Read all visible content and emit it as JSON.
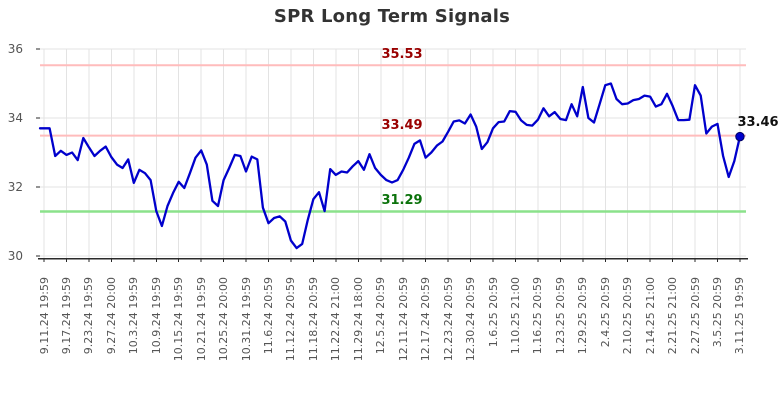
{
  "title": "SPR Long Term Signals",
  "colors": {
    "line": "#0000cc",
    "grid": "#e3e3e3",
    "axis": "#2a2a2a",
    "tick_text": "#555555",
    "title_text": "#333333",
    "last_label_text": "#111111"
  },
  "chart_data": {
    "type": "line",
    "title": "SPR Long Term Signals",
    "xlabel": "",
    "ylabel": "",
    "grid": true,
    "legend_position": "none",
    "y_ticks": [
      36,
      34,
      32,
      30
    ],
    "ylim": [
      29.9,
      36.1
    ],
    "x_tick_labels": [
      "9.11.24 19:59",
      "9.17.24 19:59",
      "9.23.24 19:59",
      "9.27.24 20:00",
      "10.3.24 19:59",
      "10.9.24 19:59",
      "10.15.24 19:59",
      "10.21.24 19:59",
      "10.25.24 20:00",
      "10.31.24 19:59",
      "11.6.24 20:59",
      "11.12.24 20:59",
      "11.18.24 20:59",
      "11.22.24 21:00",
      "11.29.24 18:00",
      "12.5.24 20:59",
      "12.11.24 20:59",
      "12.17.24 20:59",
      "12.23.24 20:59",
      "12.30.24 20:59",
      "1.6.25 20:59",
      "1.10.25 21:00",
      "1.16.25 20:59",
      "1.23.25 20:59",
      "1.29.25 20:59",
      "2.4.25 20:59",
      "2.10.25 20:59",
      "2.14.25 21:00",
      "2.21.25 21:00",
      "2.27.25 20:59",
      "3.5.25 20:59",
      "3.11.25 19:59"
    ],
    "points_per_tick": 4,
    "series": [
      {
        "name": "SPR",
        "color": "#0000cc",
        "values": [
          33.7,
          33.7,
          32.9,
          33.05,
          32.93,
          33.0,
          32.78,
          33.42,
          33.15,
          32.9,
          33.05,
          33.17,
          32.87,
          32.65,
          32.55,
          32.8,
          32.12,
          32.5,
          32.4,
          32.2,
          31.3,
          30.87,
          31.45,
          31.83,
          32.15,
          31.97,
          32.4,
          32.85,
          33.06,
          32.65,
          31.6,
          31.45,
          32.2,
          32.55,
          32.93,
          32.9,
          32.45,
          32.88,
          32.8,
          31.4,
          30.95,
          31.1,
          31.15,
          31.0,
          30.45,
          30.23,
          30.35,
          31.05,
          31.65,
          31.85,
          31.3,
          32.52,
          32.35,
          32.45,
          32.42,
          32.6,
          32.75,
          32.5,
          32.95,
          32.55,
          32.35,
          32.2,
          32.13,
          32.2,
          32.5,
          32.85,
          33.25,
          33.35,
          32.85,
          33.0,
          33.2,
          33.32,
          33.6,
          33.9,
          33.93,
          33.84,
          34.1,
          33.75,
          33.1,
          33.3,
          33.7,
          33.88,
          33.9,
          34.2,
          34.18,
          33.93,
          33.8,
          33.78,
          33.95,
          34.28,
          34.05,
          34.17,
          33.97,
          33.94,
          34.4,
          34.05,
          34.9,
          34.0,
          33.87,
          34.4,
          34.95,
          35.0,
          34.55,
          34.4,
          34.42,
          34.52,
          34.55,
          34.65,
          34.62,
          34.33,
          34.4,
          34.7,
          34.35,
          33.94,
          33.94,
          33.95,
          34.95,
          34.65,
          33.55,
          33.75,
          33.83,
          32.9,
          32.29,
          32.75,
          33.46
        ]
      }
    ],
    "reference_lines": [
      {
        "value": 35.53,
        "label": "35.53",
        "line_color": "#ffbcbc",
        "label_color": "#990000"
      },
      {
        "value": 33.49,
        "label": "33.49",
        "line_color": "#ffbcbc",
        "label_color": "#990000"
      },
      {
        "value": 31.29,
        "label": "31.29",
        "line_color": "#8be28b",
        "label_color": "#0b720b"
      }
    ],
    "last_value_label": "33.46",
    "last_value": 33.46
  }
}
